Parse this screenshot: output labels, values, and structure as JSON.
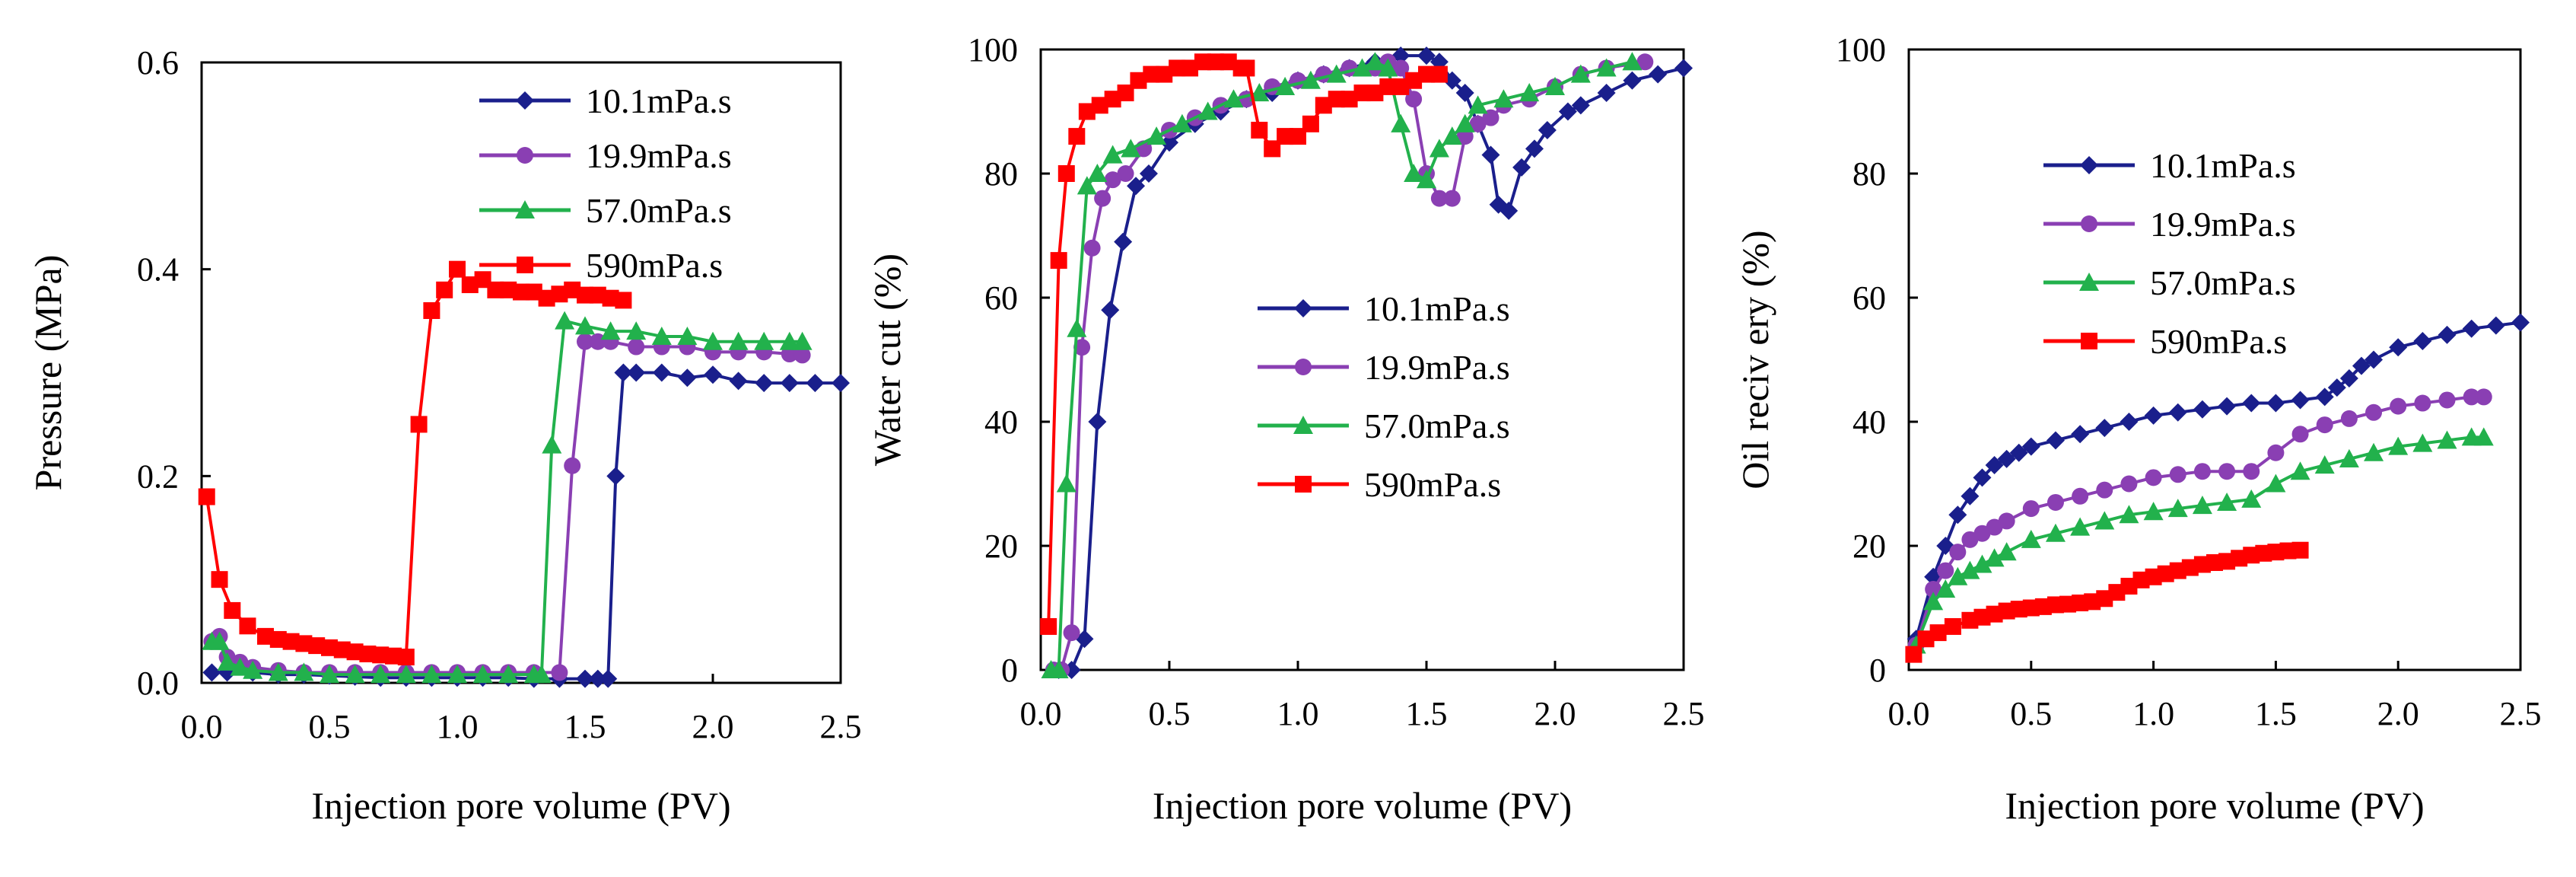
{
  "marker_styles": {
    "10.1mPa.s": {
      "color": "#1a1f8c",
      "marker": "diamond"
    },
    "19.9mPa.s": {
      "color": "#8a3fb3",
      "marker": "circle"
    },
    "57.0mPa.s": {
      "color": "#22b14c",
      "marker": "triangle"
    },
    "590mPa.s": {
      "color": "#ff0000",
      "marker": "square"
    }
  },
  "chart_data": [
    {
      "type": "line",
      "xlabel": "Injection  pore volume  (PV)",
      "ylabel": "Pressure (MPa)",
      "xlim": [
        0,
        2.5
      ],
      "ylim": [
        0,
        0.6
      ],
      "xticks": [
        "0.0",
        "0.5",
        "1.0",
        "1.5",
        "2.0",
        "2.5"
      ],
      "yticks": [
        "0.0",
        "0.2",
        "0.4",
        "0.6"
      ],
      "grid": false,
      "legend_position": "top-right",
      "series": [
        {
          "name": "10.1mPa.s",
          "x": [
            0.04,
            0.1,
            0.2,
            0.3,
            0.4,
            0.5,
            0.6,
            0.7,
            0.8,
            0.9,
            1.0,
            1.1,
            1.2,
            1.3,
            1.4,
            1.5,
            1.55,
            1.59,
            1.62,
            1.65,
            1.7,
            1.8,
            1.9,
            2.0,
            2.1,
            2.2,
            2.3,
            2.4,
            2.5
          ],
          "y": [
            0.01,
            0.01,
            0.01,
            0.008,
            0.008,
            0.007,
            0.006,
            0.005,
            0.005,
            0.005,
            0.005,
            0.005,
            0.005,
            0.004,
            0.004,
            0.004,
            0.004,
            0.004,
            0.2,
            0.3,
            0.3,
            0.3,
            0.295,
            0.298,
            0.292,
            0.29,
            0.29,
            0.29,
            0.29
          ]
        },
        {
          "name": "19.9mPa.s",
          "x": [
            0.04,
            0.07,
            0.1,
            0.15,
            0.2,
            0.3,
            0.4,
            0.5,
            0.6,
            0.7,
            0.8,
            0.9,
            1.0,
            1.1,
            1.2,
            1.3,
            1.4,
            1.45,
            1.5,
            1.55,
            1.6,
            1.7,
            1.8,
            1.9,
            2.0,
            2.1,
            2.2,
            2.3,
            2.35
          ],
          "y": [
            0.04,
            0.045,
            0.025,
            0.02,
            0.015,
            0.012,
            0.01,
            0.01,
            0.01,
            0.01,
            0.01,
            0.01,
            0.01,
            0.01,
            0.01,
            0.01,
            0.01,
            0.21,
            0.33,
            0.33,
            0.33,
            0.325,
            0.325,
            0.325,
            0.32,
            0.32,
            0.32,
            0.318,
            0.317
          ]
        },
        {
          "name": "57.0mPa.s",
          "x": [
            0.04,
            0.07,
            0.1,
            0.15,
            0.2,
            0.3,
            0.4,
            0.5,
            0.6,
            0.7,
            0.8,
            0.9,
            1.0,
            1.1,
            1.2,
            1.3,
            1.33,
            1.37,
            1.42,
            1.5,
            1.6,
            1.7,
            1.8,
            1.9,
            2.0,
            2.1,
            2.2,
            2.3,
            2.35
          ],
          "y": [
            0.04,
            0.04,
            0.02,
            0.015,
            0.012,
            0.01,
            0.01,
            0.008,
            0.008,
            0.008,
            0.008,
            0.008,
            0.008,
            0.008,
            0.008,
            0.008,
            0.008,
            0.23,
            0.35,
            0.345,
            0.34,
            0.34,
            0.335,
            0.335,
            0.33,
            0.33,
            0.33,
            0.33,
            0.33
          ]
        },
        {
          "name": "590mPa.s",
          "x": [
            0.02,
            0.07,
            0.12,
            0.18,
            0.25,
            0.3,
            0.35,
            0.4,
            0.45,
            0.5,
            0.55,
            0.6,
            0.65,
            0.7,
            0.75,
            0.8,
            0.85,
            0.9,
            0.95,
            1.0,
            1.05,
            1.1,
            1.15,
            1.2,
            1.25,
            1.3,
            1.35,
            1.4,
            1.45,
            1.5,
            1.55,
            1.6,
            1.65
          ],
          "y": [
            0.18,
            0.1,
            0.07,
            0.055,
            0.045,
            0.042,
            0.04,
            0.038,
            0.036,
            0.034,
            0.032,
            0.03,
            0.028,
            0.027,
            0.026,
            0.025,
            0.25,
            0.36,
            0.38,
            0.4,
            0.385,
            0.39,
            0.38,
            0.38,
            0.378,
            0.378,
            0.372,
            0.376,
            0.38,
            0.375,
            0.375,
            0.372,
            0.37
          ]
        }
      ]
    },
    {
      "type": "line",
      "xlabel": "Injection  pore volume  (PV)",
      "ylabel": "Water cut (%)",
      "xlim": [
        0,
        2.5
      ],
      "ylim": [
        0,
        100
      ],
      "xticks": [
        "0.0",
        "0.5",
        "1.0",
        "1.5",
        "2.0",
        "2.5"
      ],
      "yticks": [
        "0",
        "20",
        "40",
        "60",
        "80",
        "100"
      ],
      "grid": false,
      "legend_position": "center-right",
      "series": [
        {
          "name": "10.1mPa.s",
          "x": [
            0.07,
            0.12,
            0.17,
            0.22,
            0.27,
            0.32,
            0.37,
            0.42,
            0.5,
            0.6,
            0.7,
            0.8,
            0.9,
            1.0,
            1.1,
            1.2,
            1.3,
            1.4,
            1.5,
            1.55,
            1.6,
            1.65,
            1.7,
            1.75,
            1.78,
            1.82,
            1.87,
            1.92,
            1.97,
            2.05,
            2.1,
            2.2,
            2.3,
            2.4,
            2.5
          ],
          "y": [
            0,
            0,
            5,
            40,
            58,
            69,
            78,
            80,
            85,
            88,
            90,
            92,
            93,
            95,
            96,
            97,
            98,
            99,
            99,
            98,
            95,
            93,
            88,
            83,
            75,
            74,
            81,
            84,
            87,
            90,
            91,
            93,
            95,
            96,
            97
          ]
        },
        {
          "name": "19.9mPa.s",
          "x": [
            0.05,
            0.08,
            0.12,
            0.16,
            0.2,
            0.24,
            0.28,
            0.33,
            0.4,
            0.5,
            0.6,
            0.7,
            0.8,
            0.9,
            1.0,
            1.1,
            1.2,
            1.3,
            1.35,
            1.4,
            1.45,
            1.5,
            1.55,
            1.6,
            1.65,
            1.7,
            1.75,
            1.8,
            1.9,
            2.0,
            2.1,
            2.2,
            2.35
          ],
          "y": [
            0,
            0,
            6,
            52,
            68,
            76,
            79,
            80,
            84,
            87,
            89,
            91,
            92,
            94,
            95,
            96,
            97,
            97,
            98,
            97,
            92,
            80,
            76,
            76,
            86,
            88,
            89,
            91,
            92,
            94,
            96,
            97,
            98
          ]
        },
        {
          "name": "57.0mPa.s",
          "x": [
            0.04,
            0.07,
            0.1,
            0.14,
            0.18,
            0.22,
            0.28,
            0.35,
            0.45,
            0.55,
            0.65,
            0.75,
            0.85,
            0.95,
            1.05,
            1.15,
            1.25,
            1.3,
            1.35,
            1.4,
            1.45,
            1.5,
            1.55,
            1.6,
            1.65,
            1.7,
            1.8,
            1.9,
            2.0,
            2.1,
            2.2,
            2.3
          ],
          "y": [
            0,
            0,
            30,
            55,
            78,
            80,
            83,
            84,
            86,
            88,
            90,
            92,
            93,
            94,
            95,
            96,
            97,
            98,
            97,
            88,
            80,
            79,
            84,
            86,
            88,
            91,
            92,
            93,
            94,
            96,
            97,
            98
          ]
        },
        {
          "name": "590mPa.s",
          "x": [
            0.03,
            0.07,
            0.1,
            0.14,
            0.18,
            0.23,
            0.28,
            0.33,
            0.38,
            0.43,
            0.48,
            0.53,
            0.58,
            0.63,
            0.68,
            0.73,
            0.78,
            0.8,
            0.85,
            0.9,
            0.95,
            1.0,
            1.05,
            1.1,
            1.15,
            1.2,
            1.25,
            1.3,
            1.35,
            1.4,
            1.45,
            1.5,
            1.55
          ],
          "y": [
            7,
            66,
            80,
            86,
            90,
            91,
            92,
            93,
            95,
            96,
            96,
            97,
            97,
            98,
            98,
            98,
            97,
            97,
            87,
            84,
            86,
            86,
            88,
            91,
            92,
            92,
            93,
            93,
            94,
            94,
            95,
            96,
            96
          ]
        }
      ]
    },
    {
      "type": "line",
      "xlabel": "Injection  pore volume  (PV)",
      "ylabel": "Oil reciv ery (%)",
      "xlim": [
        0,
        2.5
      ],
      "ylim": [
        0,
        100
      ],
      "xticks": [
        "0.0",
        "0.5",
        "1.0",
        "1.5",
        "2.0",
        "2.5"
      ],
      "yticks": [
        "0",
        "20",
        "40",
        "60",
        "80",
        "100"
      ],
      "grid": false,
      "legend_position": "top-right",
      "series": [
        {
          "name": "10.1mPa.s",
          "x": [
            0.03,
            0.1,
            0.15,
            0.2,
            0.25,
            0.3,
            0.35,
            0.4,
            0.45,
            0.5,
            0.6,
            0.7,
            0.8,
            0.9,
            1.0,
            1.1,
            1.2,
            1.3,
            1.4,
            1.5,
            1.6,
            1.7,
            1.75,
            1.8,
            1.85,
            1.9,
            2.0,
            2.1,
            2.2,
            2.3,
            2.4,
            2.5
          ],
          "y": [
            5,
            15,
            20,
            25,
            28,
            31,
            33,
            34,
            35,
            36,
            37,
            38,
            39,
            40,
            41,
            41.5,
            42,
            42.5,
            43,
            43,
            43.5,
            44,
            45.5,
            47,
            49,
            50,
            52,
            53,
            54,
            55,
            55.5,
            56
          ]
        },
        {
          "name": "19.9mPa.s",
          "x": [
            0.03,
            0.1,
            0.15,
            0.2,
            0.25,
            0.3,
            0.35,
            0.4,
            0.5,
            0.6,
            0.7,
            0.8,
            0.9,
            1.0,
            1.1,
            1.2,
            1.3,
            1.4,
            1.5,
            1.6,
            1.7,
            1.8,
            1.9,
            2.0,
            2.1,
            2.2,
            2.3,
            2.35
          ],
          "y": [
            4,
            13,
            16,
            19,
            21,
            22,
            23,
            24,
            26,
            27,
            28,
            29,
            30,
            31,
            31.5,
            32,
            32,
            32,
            35,
            38,
            39.5,
            40.5,
            41.5,
            42.5,
            43,
            43.5,
            44,
            44
          ]
        },
        {
          "name": "57.0mPa.s",
          "x": [
            0.03,
            0.1,
            0.15,
            0.2,
            0.25,
            0.3,
            0.35,
            0.4,
            0.5,
            0.6,
            0.7,
            0.8,
            0.9,
            1.0,
            1.1,
            1.2,
            1.3,
            1.4,
            1.5,
            1.6,
            1.7,
            1.8,
            1.9,
            2.0,
            2.1,
            2.2,
            2.3,
            2.35
          ],
          "y": [
            4,
            11,
            13,
            15,
            16,
            17,
            18,
            19,
            21,
            22,
            23,
            24,
            25,
            25.5,
            26,
            26.5,
            27,
            27.5,
            30,
            32,
            33,
            34,
            35,
            36,
            36.5,
            37,
            37.5,
            37.5
          ]
        },
        {
          "name": "590mPa.s",
          "x": [
            0.02,
            0.07,
            0.12,
            0.18,
            0.25,
            0.3,
            0.35,
            0.4,
            0.45,
            0.5,
            0.55,
            0.6,
            0.65,
            0.7,
            0.75,
            0.8,
            0.85,
            0.9,
            0.95,
            1.0,
            1.05,
            1.1,
            1.15,
            1.2,
            1.25,
            1.3,
            1.35,
            1.4,
            1.45,
            1.5,
            1.55,
            1.6
          ],
          "y": [
            2.5,
            5,
            6,
            7,
            8,
            8.5,
            9,
            9.5,
            9.8,
            10,
            10.2,
            10.5,
            10.6,
            10.8,
            11,
            11.5,
            12.5,
            13.5,
            14.5,
            15,
            15.5,
            16,
            16.5,
            17,
            17.3,
            17.5,
            18,
            18.5,
            18.8,
            19,
            19.2,
            19.3
          ]
        }
      ]
    }
  ]
}
